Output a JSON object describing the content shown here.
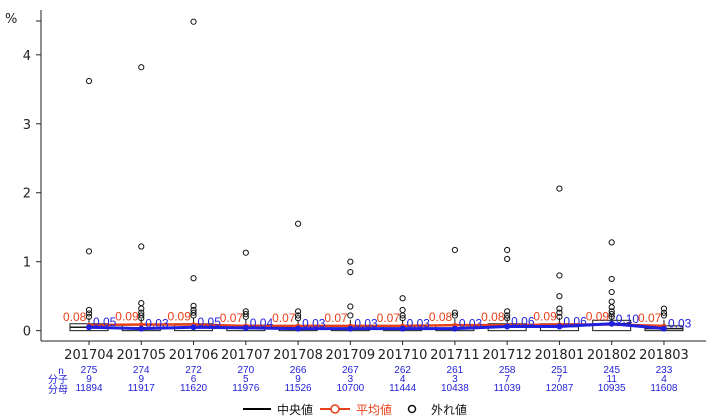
{
  "chart_data": {
    "type": "box",
    "y_unit": "%",
    "ylim": [
      -0.15,
      4.65
    ],
    "y_ticks": [
      0,
      1,
      2,
      3,
      4
    ],
    "categories": [
      "201704",
      "201705",
      "201706",
      "201707",
      "201708",
      "201709",
      "201710",
      "201711",
      "201712",
      "201801",
      "201802",
      "201803"
    ],
    "median": [
      0.05,
      0.03,
      0.05,
      0.04,
      0.03,
      0.03,
      0.03,
      0.03,
      0.06,
      0.06,
      0.1,
      0.03
    ],
    "mean": [
      0.08,
      0.09,
      0.09,
      0.07,
      0.07,
      0.07,
      0.07,
      0.08,
      0.08,
      0.09,
      0.09,
      0.07
    ],
    "median_labels": [
      "0.05",
      "0.03",
      "0.05",
      "0.04",
      "0.03",
      "0.03",
      "0.03",
      "0.03",
      "0.06",
      "0.06",
      "0.10",
      "0.03"
    ],
    "mean_labels": [
      "0.08",
      "0.09",
      "0.09",
      "0.07",
      "0.07",
      "0.07",
      "0.07",
      "0.08",
      "0.08",
      "0.09",
      "0.09",
      "0.07"
    ],
    "box_q1": [
      0.0,
      0.0,
      0.0,
      0.0,
      0.0,
      0.0,
      0.0,
      0.0,
      0.0,
      0.0,
      0.0,
      0.0
    ],
    "box_q3": [
      0.1,
      0.08,
      0.1,
      0.08,
      0.07,
      0.07,
      0.07,
      0.08,
      0.1,
      0.1,
      0.15,
      0.07
    ],
    "outliers": [
      [
        3.62,
        1.15,
        0.3,
        0.25,
        0.2
      ],
      [
        3.82,
        1.22,
        0.4,
        0.32,
        0.26,
        0.22,
        0.18
      ],
      [
        4.48,
        0.76,
        0.36,
        0.3,
        0.26,
        0.22
      ],
      [
        1.13,
        0.28,
        0.24,
        0.2
      ],
      [
        1.55,
        0.28,
        0.22,
        0.18
      ],
      [
        1.0,
        0.85,
        0.35,
        0.22
      ],
      [
        0.47,
        0.3,
        0.22,
        0.18
      ],
      [
        1.17,
        0.26,
        0.22
      ],
      [
        1.17,
        1.04,
        0.28,
        0.22,
        0.18
      ],
      [
        2.06,
        0.8,
        0.5,
        0.32,
        0.26,
        0.2
      ],
      [
        1.28,
        0.75,
        0.56,
        0.42,
        0.34,
        0.28,
        0.24,
        0.2
      ],
      [
        0.32,
        0.26,
        0.22
      ]
    ],
    "n": [
      "275",
      "274",
      "272",
      "270",
      "266",
      "267",
      "262",
      "261",
      "258",
      "251",
      "245",
      "233"
    ],
    "numerator": [
      "9",
      "9",
      "6",
      "5",
      "9",
      "3",
      "4",
      "3",
      "7",
      "7",
      "11",
      "4"
    ],
    "denominator": [
      "11894",
      "11917",
      "11620",
      "11976",
      "11526",
      "10700",
      "11444",
      "10438",
      "11039",
      "12087",
      "10935",
      "11608"
    ],
    "row_labels": {
      "n": "n",
      "numerator": "分子",
      "denominator": "分母"
    },
    "legend": [
      "中央値",
      "平均値",
      "外れ値"
    ],
    "colors": {
      "median": "#2020e0",
      "mean": "#e8401a",
      "box": "#1a1a1a",
      "outlier": "#111111",
      "legend_median": "#000000"
    }
  }
}
